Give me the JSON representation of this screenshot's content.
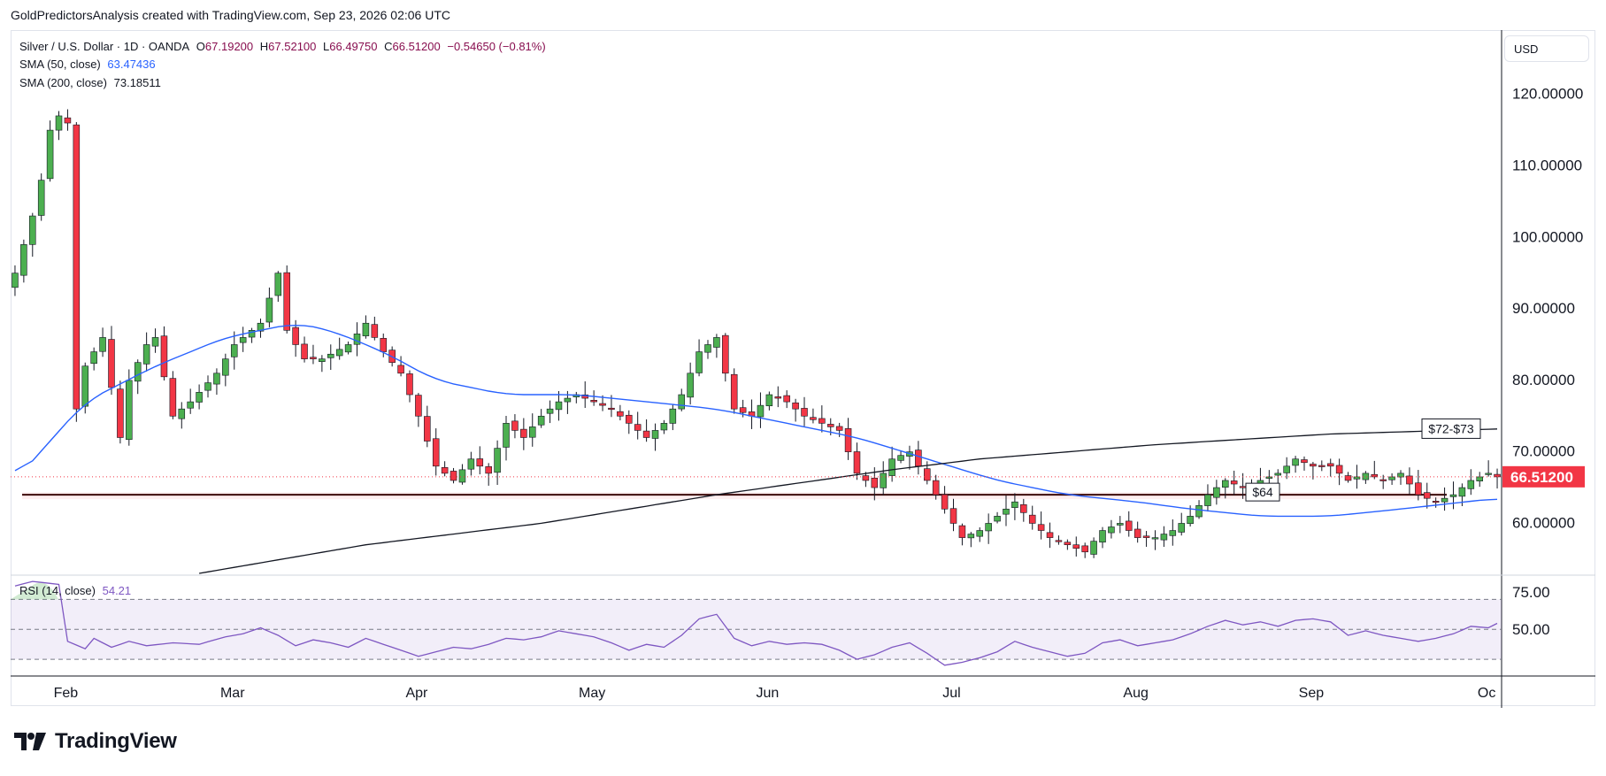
{
  "header": {
    "text": "GoldPredictorsAnalysis created with TradingView.com, Sep 23, 2026 02:06 UTC"
  },
  "brand": {
    "name": "TradingView"
  },
  "currency": "USD",
  "legend": {
    "symbol": "Silver / U.S. Dollar · 1D · OANDA",
    "o_label": "O",
    "o": "67.19200",
    "h_label": "H",
    "h": "67.52100",
    "l_label": "L",
    "l": "66.49750",
    "c_label": "C",
    "c": "66.51200",
    "change": "−0.54650 (−0.81%)",
    "sma50_label": "SMA (50, close)",
    "sma50_value": "63.47436",
    "sma200_label": "SMA (200, close)",
    "sma200_value": "73.18511",
    "rsi_label": "RSI (14, close)",
    "rsi_value": "54.21"
  },
  "colors": {
    "up": "#4caf50",
    "down": "#f23645",
    "sma50": "#2962ff",
    "sma200": "#131722",
    "rsi": "#7e57c2",
    "price_badge": "#f23645"
  },
  "chart_data": [
    {
      "type": "candlestick",
      "x_axis_labels": [
        "Feb",
        "Mar",
        "Apr",
        "May",
        "Jun",
        "Jul",
        "Aug",
        "Sep",
        "Oc"
      ],
      "y_ticks": [
        "120.00000",
        "110.00000",
        "100.00000",
        "90.00000",
        "80.00000",
        "70.00000",
        "60.00000"
      ],
      "ylim": [
        53,
        129
      ],
      "last_price": "66.51200",
      "annotations": [
        {
          "label": "$72-$73",
          "value": 73
        },
        {
          "label": "$64",
          "value": 64
        }
      ],
      "support_level": 64,
      "anchors_close": [
        [
          0,
          95
        ],
        [
          2,
          103
        ],
        [
          3,
          108
        ],
        [
          4,
          115
        ],
        [
          5,
          117
        ],
        [
          6,
          116
        ],
        [
          7,
          76
        ],
        [
          8,
          82
        ],
        [
          10,
          86
        ],
        [
          12,
          72
        ],
        [
          13,
          80
        ],
        [
          15,
          85
        ],
        [
          16,
          86
        ],
        [
          18,
          75
        ],
        [
          20,
          77
        ],
        [
          23,
          81
        ],
        [
          25,
          85
        ],
        [
          28,
          88
        ],
        [
          30,
          95
        ],
        [
          31,
          87
        ],
        [
          33,
          83
        ],
        [
          35,
          83
        ],
        [
          38,
          85
        ],
        [
          40,
          88
        ],
        [
          42,
          84
        ],
        [
          44,
          81
        ],
        [
          46,
          75
        ],
        [
          48,
          68
        ],
        [
          50,
          66
        ],
        [
          52,
          69
        ],
        [
          54,
          67
        ],
        [
          56,
          74
        ],
        [
          58,
          72
        ],
        [
          60,
          75
        ],
        [
          62,
          77
        ],
        [
          64,
          78
        ],
        [
          66,
          77
        ],
        [
          68,
          76
        ],
        [
          70,
          74
        ],
        [
          72,
          72
        ],
        [
          74,
          74
        ],
        [
          76,
          78
        ],
        [
          78,
          84
        ],
        [
          80,
          86
        ],
        [
          81,
          81
        ],
        [
          82,
          76
        ],
        [
          84,
          75
        ],
        [
          86,
          78
        ],
        [
          88,
          77
        ],
        [
          90,
          75
        ],
        [
          92,
          74
        ],
        [
          94,
          73
        ],
        [
          96,
          67
        ],
        [
          98,
          65
        ],
        [
          100,
          69
        ],
        [
          102,
          70
        ],
        [
          104,
          66
        ],
        [
          106,
          62
        ],
        [
          108,
          58
        ],
        [
          110,
          59
        ],
        [
          112,
          61
        ],
        [
          114,
          63
        ],
        [
          116,
          60
        ],
        [
          118,
          58
        ],
        [
          120,
          57
        ],
        [
          122,
          56
        ],
        [
          124,
          59
        ],
        [
          126,
          60
        ],
        [
          128,
          58
        ],
        [
          130,
          58
        ],
        [
          132,
          59
        ],
        [
          134,
          61
        ],
        [
          136,
          64
        ],
        [
          138,
          66
        ],
        [
          140,
          65
        ],
        [
          142,
          66
        ],
        [
          144,
          67
        ],
        [
          146,
          69
        ],
        [
          148,
          68
        ],
        [
          150,
          68
        ],
        [
          152,
          66
        ],
        [
          154,
          67
        ],
        [
          156,
          66
        ],
        [
          158,
          67
        ],
        [
          160,
          64
        ],
        [
          162,
          63
        ],
        [
          164,
          64
        ],
        [
          166,
          66
        ],
        [
          168,
          67
        ],
        [
          169,
          66.5
        ]
      ],
      "sma50_anchors": [
        [
          0,
          66
        ],
        [
          8,
          77
        ],
        [
          16,
          82
        ],
        [
          24,
          86
        ],
        [
          32,
          88
        ],
        [
          36,
          87
        ],
        [
          42,
          84
        ],
        [
          48,
          80
        ],
        [
          56,
          78
        ],
        [
          64,
          78
        ],
        [
          72,
          77
        ],
        [
          80,
          76
        ],
        [
          88,
          74
        ],
        [
          96,
          72
        ],
        [
          104,
          69
        ],
        [
          112,
          66
        ],
        [
          120,
          64
        ],
        [
          128,
          63
        ],
        [
          134,
          62
        ],
        [
          142,
          61
        ],
        [
          150,
          61
        ],
        [
          158,
          62
        ],
        [
          169,
          63.5
        ]
      ],
      "sma200_anchors": [
        [
          21,
          53
        ],
        [
          40,
          57
        ],
        [
          60,
          60
        ],
        [
          80,
          64
        ],
        [
          100,
          67.5
        ],
        [
          110,
          69
        ],
        [
          130,
          71
        ],
        [
          150,
          72.5
        ],
        [
          169,
          73.2
        ]
      ]
    },
    {
      "type": "line",
      "name": "RSI (14, close)",
      "y_ticks": [
        "75.00",
        "50.00"
      ],
      "ylim": [
        20,
        85
      ],
      "bands": [
        70,
        30
      ],
      "anchors": [
        [
          0,
          79
        ],
        [
          2,
          82
        ],
        [
          5,
          80
        ],
        [
          6,
          42
        ],
        [
          8,
          37
        ],
        [
          9,
          44
        ],
        [
          11,
          38
        ],
        [
          13,
          42
        ],
        [
          15,
          39
        ],
        [
          18,
          41
        ],
        [
          21,
          40
        ],
        [
          24,
          45
        ],
        [
          26,
          47
        ],
        [
          28,
          51
        ],
        [
          30,
          46
        ],
        [
          32,
          39
        ],
        [
          34,
          43
        ],
        [
          36,
          41
        ],
        [
          38,
          38
        ],
        [
          40,
          44
        ],
        [
          42,
          40
        ],
        [
          44,
          36
        ],
        [
          46,
          32
        ],
        [
          48,
          35
        ],
        [
          50,
          38
        ],
        [
          52,
          37
        ],
        [
          54,
          40
        ],
        [
          56,
          44
        ],
        [
          58,
          43
        ],
        [
          60,
          45
        ],
        [
          62,
          49
        ],
        [
          64,
          47
        ],
        [
          66,
          45
        ],
        [
          68,
          41
        ],
        [
          70,
          36
        ],
        [
          72,
          40
        ],
        [
          74,
          38
        ],
        [
          76,
          46
        ],
        [
          78,
          57
        ],
        [
          80,
          60
        ],
        [
          82,
          44
        ],
        [
          84,
          39
        ],
        [
          86,
          42
        ],
        [
          88,
          40
        ],
        [
          90,
          41
        ],
        [
          92,
          40
        ],
        [
          94,
          36
        ],
        [
          96,
          30
        ],
        [
          98,
          33
        ],
        [
          100,
          38
        ],
        [
          102,
          41
        ],
        [
          104,
          34
        ],
        [
          106,
          26
        ],
        [
          108,
          28
        ],
        [
          110,
          31
        ],
        [
          112,
          35
        ],
        [
          114,
          42
        ],
        [
          116,
          38
        ],
        [
          118,
          35
        ],
        [
          120,
          32
        ],
        [
          122,
          34
        ],
        [
          124,
          41
        ],
        [
          126,
          43
        ],
        [
          128,
          39
        ],
        [
          130,
          41
        ],
        [
          132,
          43
        ],
        [
          134,
          47
        ],
        [
          136,
          52
        ],
        [
          138,
          56
        ],
        [
          140,
          53
        ],
        [
          142,
          55
        ],
        [
          144,
          52
        ],
        [
          146,
          56
        ],
        [
          148,
          57
        ],
        [
          150,
          55
        ],
        [
          152,
          46
        ],
        [
          154,
          49
        ],
        [
          156,
          46
        ],
        [
          158,
          44
        ],
        [
          160,
          42
        ],
        [
          162,
          44
        ],
        [
          164,
          47
        ],
        [
          166,
          52
        ],
        [
          168,
          51
        ],
        [
          169,
          54
        ]
      ]
    }
  ]
}
